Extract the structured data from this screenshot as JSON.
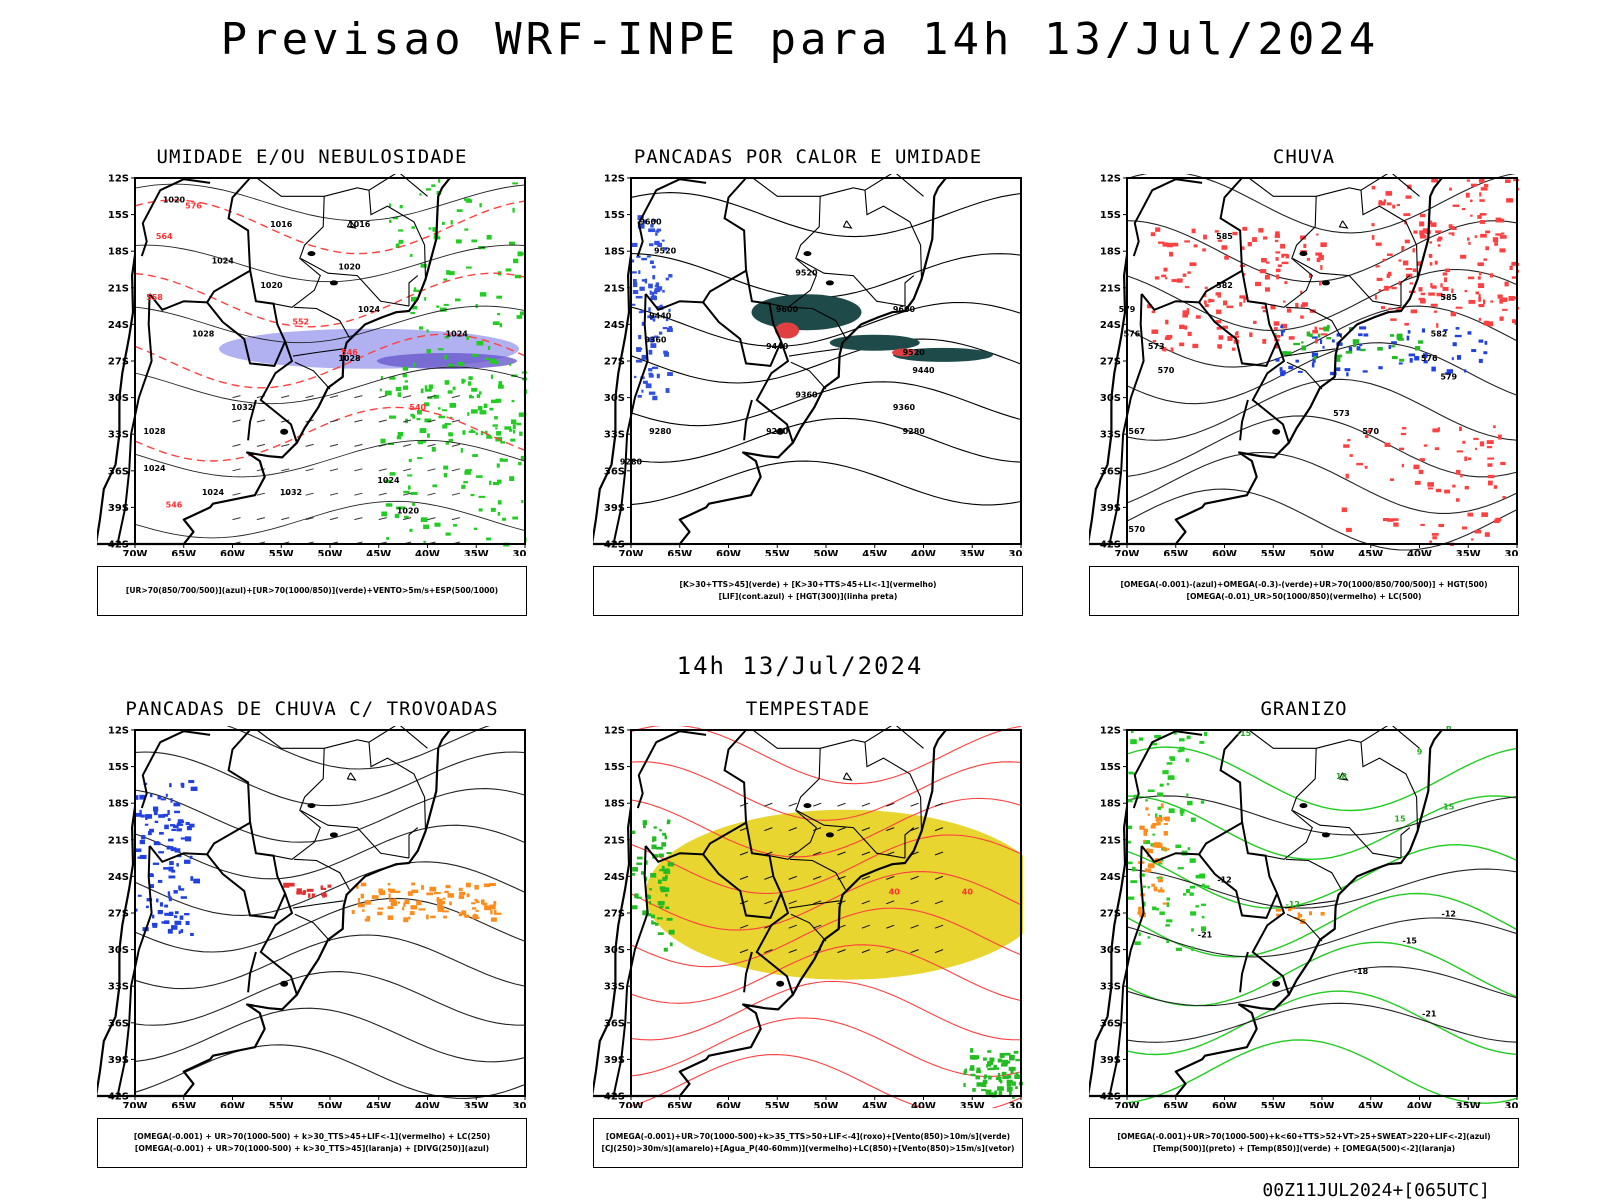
{
  "main_title": "Previsao WRF-INPE  para 14h 13/Jul/2024",
  "mid_title": "14h 13/Jul/2024",
  "footer_run": "00Z11JUL2024+[065UTC]",
  "axes": {
    "lat_labels": [
      "12S",
      "15S",
      "18S",
      "21S",
      "24S",
      "27S",
      "30S",
      "33S",
      "36S",
      "39S",
      "42S"
    ],
    "lon_labels": [
      "70W",
      "65W",
      "60W",
      "55W",
      "50W",
      "45W",
      "40W",
      "35W",
      "30W"
    ]
  },
  "panels": [
    {
      "id": "umidade",
      "title": "UMIDADE E/OU NEBULOSIDADE",
      "legend_lines": [
        "[UR>70(850/700/500)](azul)+[UR>70(1000/850)](verde)+VENTO>5m/s+ESP(500/1000)"
      ],
      "contour_labels": [
        "1020",
        "1016",
        "1016",
        "1020",
        "1024",
        "1020",
        "1024",
        "1024",
        "1028",
        "1024",
        "1028",
        "1032",
        "1028",
        "1032",
        "1024",
        "1024",
        "1020",
        "576",
        "564",
        "558",
        "552",
        "546",
        "540",
        "546"
      ]
    },
    {
      "id": "pancadas-calor",
      "title": "PANCADAS POR CALOR E UMIDADE",
      "legend_lines": [
        "[K>30+TTS>45](verde) + [K>30+TTS>45+LI<-1](vermelho)",
        "[LIF](cont.azul) + [HGT(300)](linha preta)"
      ],
      "contour_labels": [
        "9600",
        "9520",
        "9440",
        "9360",
        "9280",
        "9280",
        "9520",
        "9600",
        "9440",
        "9520",
        "9440",
        "9360",
        "9280",
        "9360",
        "9280",
        "9600"
      ]
    },
    {
      "id": "chuva",
      "title": "CHUVA",
      "legend_lines": [
        "[OMEGA(-0.001)-(azul)+OMEGA(-0.3)-(verde)+UR>70(1000/850/700/500)] + HGT(500)",
        "[OMEGA(-0.01)_UR>50(1000/850)(vermelho) + LC(500)"
      ],
      "contour_labels": [
        "585",
        "582",
        "579",
        "576",
        "573",
        "570",
        "567",
        "570",
        "582",
        "585",
        "579",
        "576",
        "573",
        "570"
      ]
    },
    {
      "id": "pancadas-trovoadas",
      "title": "PANCADAS DE CHUVA C/ TROVOADAS",
      "legend_lines": [
        "[OMEGA(-0.001) + UR>70(1000-500) + k>30_TTS>45+LIF<-1](vermelho) + LC(250)",
        "[OMEGA(-0.001) + UR>70(1000-500) + k>30_TTS>45](laranja) + [DIVG(250)](azul)"
      ],
      "contour_labels": []
    },
    {
      "id": "tempestade",
      "title": "TEMPESTADE",
      "legend_lines": [
        "[OMEGA(-0.001)+UR>70(1000-500)+k>35_TTS>50+LIF<-4](roxo)+[Vento(850)>10m/s](verde)",
        "[CJ(250)>30m/s](amarelo)+[Agua_P(40-60mm)](vermelho)+LC(850)+[Vento(850)>15m/s](vetor)"
      ],
      "contour_labels": [
        "40",
        "40"
      ]
    },
    {
      "id": "granizo",
      "title": "GRANIZO",
      "legend_lines": [
        "[OMEGA(-0.001)+UR>70(1000-500)+k<60+TTS>52+VT>25+SWEAT>220+LIF<-2](azul)",
        "[Temp(500)](preto) + [Temp(850)](verde) + [OMEGA(500)<-2](laranja)"
      ],
      "contour_labels": [
        "-12",
        "-12",
        "-15",
        "-18",
        "-21",
        "-21",
        "15",
        "15",
        "18",
        "-12",
        "-15",
        "9",
        "6"
      ]
    }
  ]
}
